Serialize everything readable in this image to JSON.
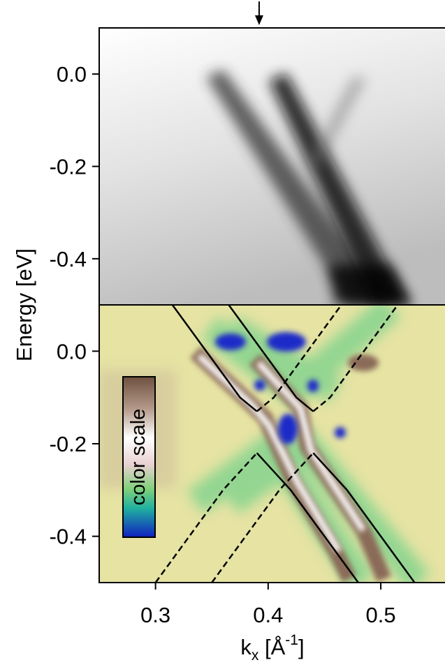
{
  "chart_data": [
    {
      "type": "heatmap",
      "y_label": "Energy [eV]",
      "xlim": [
        0.25,
        0.557
      ],
      "ylim": [
        -0.5,
        0.1
      ],
      "yticks": [
        {
          "value": 0,
          "label": "0.0"
        },
        -0.2,
        -0.4
      ],
      "arrow_x": 0.392
    },
    {
      "type": "heatmap",
      "xlim": [
        0.25,
        0.557
      ],
      "ylim": [
        -0.5,
        0.1
      ],
      "yticks": [
        {
          "value": 0,
          "label": "0.0"
        },
        -0.2,
        -0.4
      ],
      "xticks": [
        0.3,
        0.4,
        0.5
      ],
      "x_label": [
        "k",
        "x",
        " [Å",
        "-1",
        "]"
      ],
      "colorbar_label": "color scale",
      "curves": [
        {
          "x": [
            0.315,
            0.33,
            0.345,
            0.36,
            0.375,
            0.39
          ],
          "y": [
            0.1,
            0.05,
            0.0,
            -0.05,
            -0.1,
            -0.13
          ],
          "dashed": false
        },
        {
          "x": [
            0.39,
            0.405,
            0.42,
            0.435,
            0.45,
            0.465
          ],
          "y": [
            -0.13,
            -0.1,
            -0.05,
            0.0,
            0.05,
            0.1
          ],
          "dashed": true
        },
        {
          "x": [
            0.365,
            0.38,
            0.395,
            0.41,
            0.425,
            0.44
          ],
          "y": [
            0.1,
            0.05,
            0.0,
            -0.05,
            -0.1,
            -0.13
          ],
          "dashed": false
        },
        {
          "x": [
            0.44,
            0.455,
            0.47,
            0.485,
            0.5,
            0.515
          ],
          "y": [
            -0.13,
            -0.1,
            -0.05,
            0.0,
            0.05,
            0.1
          ],
          "dashed": true
        },
        {
          "x": [
            0.3,
            0.33,
            0.36,
            0.39
          ],
          "y": [
            -0.5,
            -0.4,
            -0.3,
            -0.22
          ],
          "dashed": true
        },
        {
          "x": [
            0.39,
            0.42,
            0.45,
            0.48
          ],
          "y": [
            -0.22,
            -0.3,
            -0.4,
            -0.5
          ],
          "dashed": false
        },
        {
          "x": [
            0.35,
            0.38,
            0.41,
            0.44
          ],
          "y": [
            -0.5,
            -0.4,
            -0.3,
            -0.22
          ],
          "dashed": true
        },
        {
          "x": [
            0.44,
            0.47,
            0.5,
            0.53
          ],
          "y": [
            -0.22,
            -0.3,
            -0.4,
            -0.5
          ],
          "dashed": false
        }
      ]
    }
  ]
}
